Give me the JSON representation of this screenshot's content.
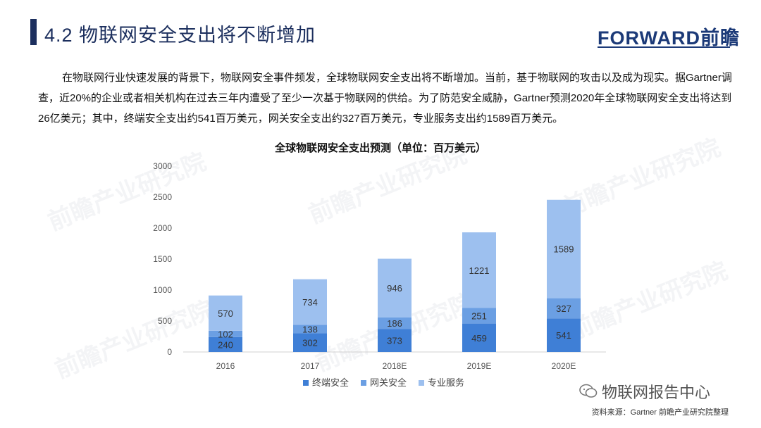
{
  "header": {
    "title": "4.2 物联网安全支出将不断增加",
    "logo_text": "FORWARD前瞻"
  },
  "body": {
    "paragraph": "在物联网行业快速发展的背景下，物联网安全事件频发，全球物联网安全支出将不断增加。当前，基于物联网的攻击以及成为现实。据Gartner调查，近20%的企业或者相关机构在过去三年内遭受了至少一次基于物联网的供给。为了防范安全威胁，Gartner预测2020年全球物联网安全支出将达到26亿美元；其中，终端安全支出约541百万美元，网关安全支出约327百万美元，专业服务支出约1589百万美元。"
  },
  "watermark": {
    "text": "前瞻产业研究院"
  },
  "chart_data": {
    "type": "bar",
    "stacked": true,
    "title": "全球物联网安全支出预测（单位：百万美元）",
    "categories": [
      "2016",
      "2017",
      "2018E",
      "2019E",
      "2020E"
    ],
    "series": [
      {
        "name": "终端安全",
        "values": [
          240,
          302,
          373,
          459,
          541
        ],
        "color": "#3f7fd6"
      },
      {
        "name": "网关安全",
        "values": [
          102,
          138,
          186,
          251,
          327
        ],
        "color": "#6b9fe3"
      },
      {
        "name": "专业服务",
        "values": [
          570,
          734,
          946,
          1221,
          1589
        ],
        "color": "#9dc0ef"
      }
    ],
    "yticks": [
      0,
      500,
      1000,
      1500,
      2000,
      2500,
      3000
    ],
    "ylim": [
      0,
      3000
    ],
    "grid": false,
    "legend_position": "bottom"
  },
  "footer": {
    "wechat_label": "物联网报告中心",
    "source": "资料来源：Gartner  前瞻产业研究院整理"
  }
}
